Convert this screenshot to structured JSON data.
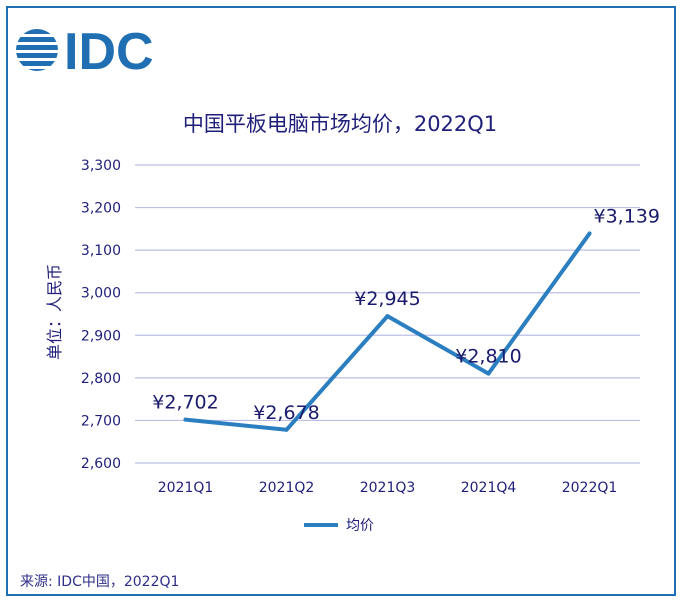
{
  "brand": {
    "logo_text": "IDC",
    "color": "#1f6fb2"
  },
  "source_text": "来源: IDC中国，2022Q1",
  "colors": {
    "line": "#2b7fc1",
    "grid": "#bcbfe6",
    "text": "#1f1f7a",
    "label": "#1b1b6e",
    "border": "#1f6fb2"
  },
  "chart_data": {
    "type": "line",
    "title": "中国平板电脑市场均价，2022Q1",
    "ylabel": "单位：人民币",
    "xlabel": "",
    "categories": [
      "2021Q1",
      "2021Q2",
      "2021Q3",
      "2021Q4",
      "2022Q1"
    ],
    "series": [
      {
        "name": "均价",
        "values": [
          2702,
          2678,
          2945,
          2810,
          3139
        ],
        "labels": [
          "¥2,702",
          "¥2,678",
          "¥2,945",
          "¥2,810",
          "¥3,139"
        ]
      }
    ],
    "ylim": [
      2600,
      3300
    ],
    "yticks": [
      2600,
      2700,
      2800,
      2900,
      3000,
      3100,
      3200,
      3300
    ],
    "ytick_labels": [
      "2,600",
      "2,700",
      "2,800",
      "2,900",
      "3,000",
      "3,100",
      "3,200",
      "3,300"
    ],
    "grid": true,
    "legend_position": "bottom"
  }
}
